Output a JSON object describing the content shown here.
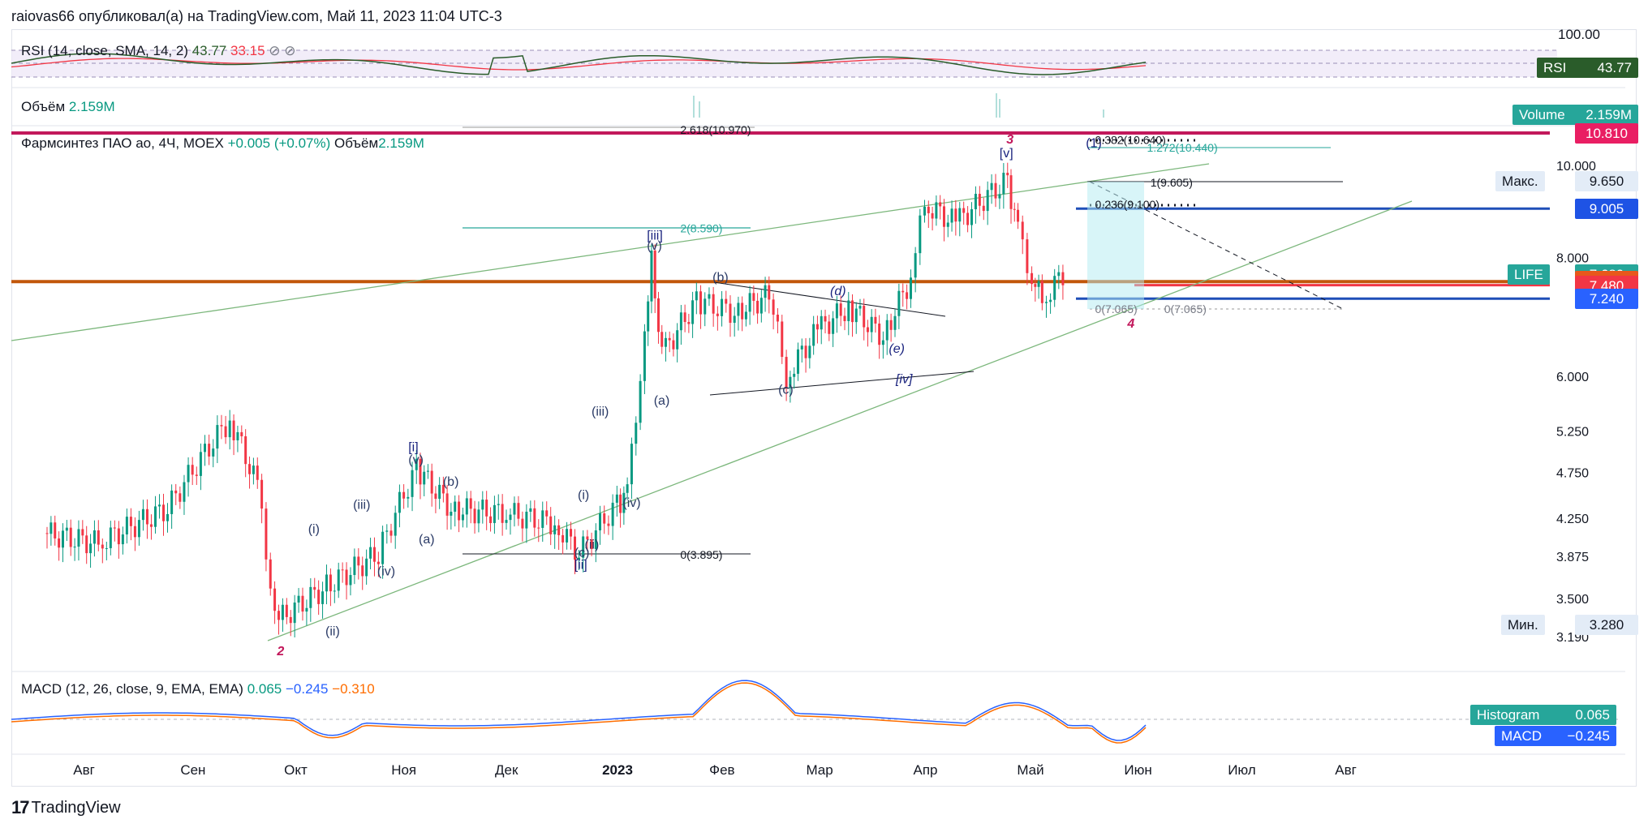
{
  "header": "raiovas66 опубликовал(а) на TradingView.com, Май 11, 2023 11:04 UTC-3",
  "footer": {
    "brand": "TradingView",
    "icon": "tradingview-logo-icon"
  },
  "colors": {
    "up": "#089981",
    "down": "#f23645",
    "ma": "#f23645",
    "rsi": "#2a5c2a",
    "macd": "#2962ff",
    "signal": "#ff6d00",
    "pink_line": "#c2185b",
    "orange_line": "#c2570a",
    "blue_line": "#1e4fb8",
    "fib_teal": "#26a69a",
    "wave_green": "#7cb77c"
  },
  "rsi_panel": {
    "title": "RSI (14, close, SMA, 14, 2)",
    "value": "43.77",
    "ma_value": "33.15",
    "scale_top": "100.00",
    "tags": [
      {
        "label": "RSI",
        "value": "43.77"
      }
    ]
  },
  "volume_panel": {
    "title": "Объём",
    "value": "2.159M",
    "tag_label": "Volume",
    "tag_value": "2.159M"
  },
  "main_panel": {
    "symbol": "Фармсинтез ПАО ао, 4Ч, MOEX",
    "change": "+0.005 (+0.07%)",
    "vol_label": "Объём",
    "vol_value": "2.159M",
    "max_label": "Макс.",
    "max_value": "9.650",
    "min_label": "Мин.",
    "min_value": "3.280",
    "life_label": "LIFE",
    "life_value": "7.680"
  },
  "macd_panel": {
    "title": "MACD (12, 26, close, 9, EMA, EMA)",
    "hist": "0.065",
    "macd": "−0.245",
    "signal": "−0.310",
    "tag_hist_label": "Histogram",
    "tag_hist_value": "0.065",
    "tag_macd_label": "MACD",
    "tag_macd_value": "−0.245"
  },
  "chart_data": {
    "type": "candlestick",
    "price_axis_ticks": [
      "10.000",
      "8.000",
      "6.000",
      "5.250",
      "4.750",
      "4.250",
      "3.875",
      "3.500",
      "3.190"
    ],
    "price_tags": [
      {
        "value": "10.810",
        "color": "#e91e63"
      },
      {
        "value": "9.005",
        "color": "#1e53e5"
      },
      {
        "value": "7.570",
        "color": "#e8581b"
      },
      {
        "value": "7.480",
        "color": "#f23645"
      },
      {
        "value": "7.240",
        "color": "#2962ff"
      }
    ],
    "time_axis": [
      "Авг",
      "Сен",
      "Окт",
      "Ноя",
      "Дек",
      "2023",
      "Фев",
      "Мар",
      "Апр",
      "Май",
      "Июн",
      "Июл",
      "Авг"
    ],
    "approx_price_path": [
      [
        "2022-07-20",
        4.1
      ],
      [
        "2022-08-05",
        4.0
      ],
      [
        "2022-08-25",
        4.35
      ],
      [
        "2022-09-12",
        5.4
      ],
      [
        "2022-09-20",
        4.6
      ],
      [
        "2022-09-25",
        3.3
      ],
      [
        "2022-10-10",
        3.6
      ],
      [
        "2022-10-25",
        3.9
      ],
      [
        "2022-11-05",
        4.8
      ],
      [
        "2022-11-15",
        4.35
      ],
      [
        "2022-12-01",
        4.3
      ],
      [
        "2022-12-15",
        4.2
      ],
      [
        "2022-12-22",
        3.9
      ],
      [
        "2023-01-02",
        4.4
      ],
      [
        "2023-01-05",
        4.5
      ],
      [
        "2023-01-10",
        6.5
      ],
      [
        "2023-01-12",
        7.9
      ],
      [
        "2023-01-15",
        6.3
      ],
      [
        "2023-01-25",
        7.2
      ],
      [
        "2023-02-05",
        7.0
      ],
      [
        "2023-02-15",
        7.3
      ],
      [
        "2023-02-20",
        6.0
      ],
      [
        "2023-03-01",
        6.7
      ],
      [
        "2023-03-10",
        7.1
      ],
      [
        "2023-03-20",
        6.6
      ],
      [
        "2023-03-28",
        7.6
      ],
      [
        "2023-04-01",
        9.1
      ],
      [
        "2023-04-10",
        8.7
      ],
      [
        "2023-04-25",
        9.65
      ],
      [
        "2023-04-28",
        8.5
      ],
      [
        "2023-05-02",
        7.6
      ],
      [
        "2023-05-05",
        7.2
      ],
      [
        "2023-05-11",
        7.68
      ]
    ],
    "annotations": [
      {
        "text": "[v]",
        "date": "2023-04-25",
        "price": 10.2
      },
      {
        "text": "3",
        "date": "2023-04-27",
        "price": 10.55
      },
      {
        "text": "(1)",
        "date": "2023-05-20",
        "price": 10.45
      },
      {
        "text": "4",
        "date": "2023-06-01",
        "price": 6.75
      },
      {
        "text": "[iii]",
        "date": "2023-01-13",
        "price": 8.35
      },
      {
        "text": "(v)",
        "date": "2023-01-13",
        "price": 8.15
      },
      {
        "text": "(b)",
        "date": "2023-02-01",
        "price": 7.55
      },
      {
        "text": "(d)",
        "date": "2023-03-07",
        "price": 7.3
      },
      {
        "text": "(e)",
        "date": "2023-03-24",
        "price": 6.35
      },
      {
        "text": "[iv]",
        "date": "2023-03-26",
        "price": 5.9
      },
      {
        "text": "(a)",
        "date": "2023-01-15",
        "price": 5.6
      },
      {
        "text": "(c)",
        "date": "2023-02-20",
        "price": 5.75
      },
      {
        "text": "(iii)",
        "date": "2022-12-28",
        "price": 5.45
      },
      {
        "text": "(i)",
        "date": "2022-12-24",
        "price": 4.45
      },
      {
        "text": "(ii)",
        "date": "2022-12-26",
        "price": 3.95
      },
      {
        "text": "(c)",
        "date": "2022-12-23",
        "price": 3.87
      },
      {
        "text": "[ii]",
        "date": "2022-12-23",
        "price": 3.76
      },
      {
        "text": "(iv)",
        "date": "2023-01-06",
        "price": 4.37
      },
      {
        "text": "[i]",
        "date": "2022-11-05",
        "price": 5.0
      },
      {
        "text": "(v)",
        "date": "2022-11-05",
        "price": 4.85
      },
      {
        "text": "(b)",
        "date": "2022-11-15",
        "price": 4.6
      },
      {
        "text": "(a)",
        "date": "2022-11-08",
        "price": 4.0
      },
      {
        "text": "(iii)",
        "date": "2022-10-20",
        "price": 4.35
      },
      {
        "text": "(i)",
        "date": "2022-10-07",
        "price": 4.1
      },
      {
        "text": "(iv)",
        "date": "2022-10-27",
        "price": 3.7
      },
      {
        "text": "(ii)",
        "date": "2022-10-12",
        "price": 3.2
      },
      {
        "text": "2",
        "date": "2022-09-28",
        "price": 3.05
      }
    ],
    "fib_labels": [
      {
        "text": "2.618(10.970)",
        "date": "2023-01-25",
        "price": 10.9
      },
      {
        "text": "0.382(10.640)",
        "date": "2023-05-25",
        "price": 10.64
      },
      {
        "text": "1.272(10.440)",
        "date": "2023-06-09",
        "price": 10.44
      },
      {
        "text": "1(9.605)",
        "date": "2023-06-10",
        "price": 9.6
      },
      {
        "text": "0.236(9.100)",
        "date": "2023-05-25",
        "price": 9.1
      },
      {
        "text": "2(8.590)",
        "date": "2023-01-25",
        "price": 8.59
      },
      {
        "text": "0(7.065)",
        "date": "2023-05-25",
        "price": 7.06
      },
      {
        "text": "0(7.065)",
        "date": "2023-06-14",
        "price": 7.06
      },
      {
        "text": "0(3.895)",
        "date": "2023-01-25",
        "price": 3.89
      }
    ]
  }
}
